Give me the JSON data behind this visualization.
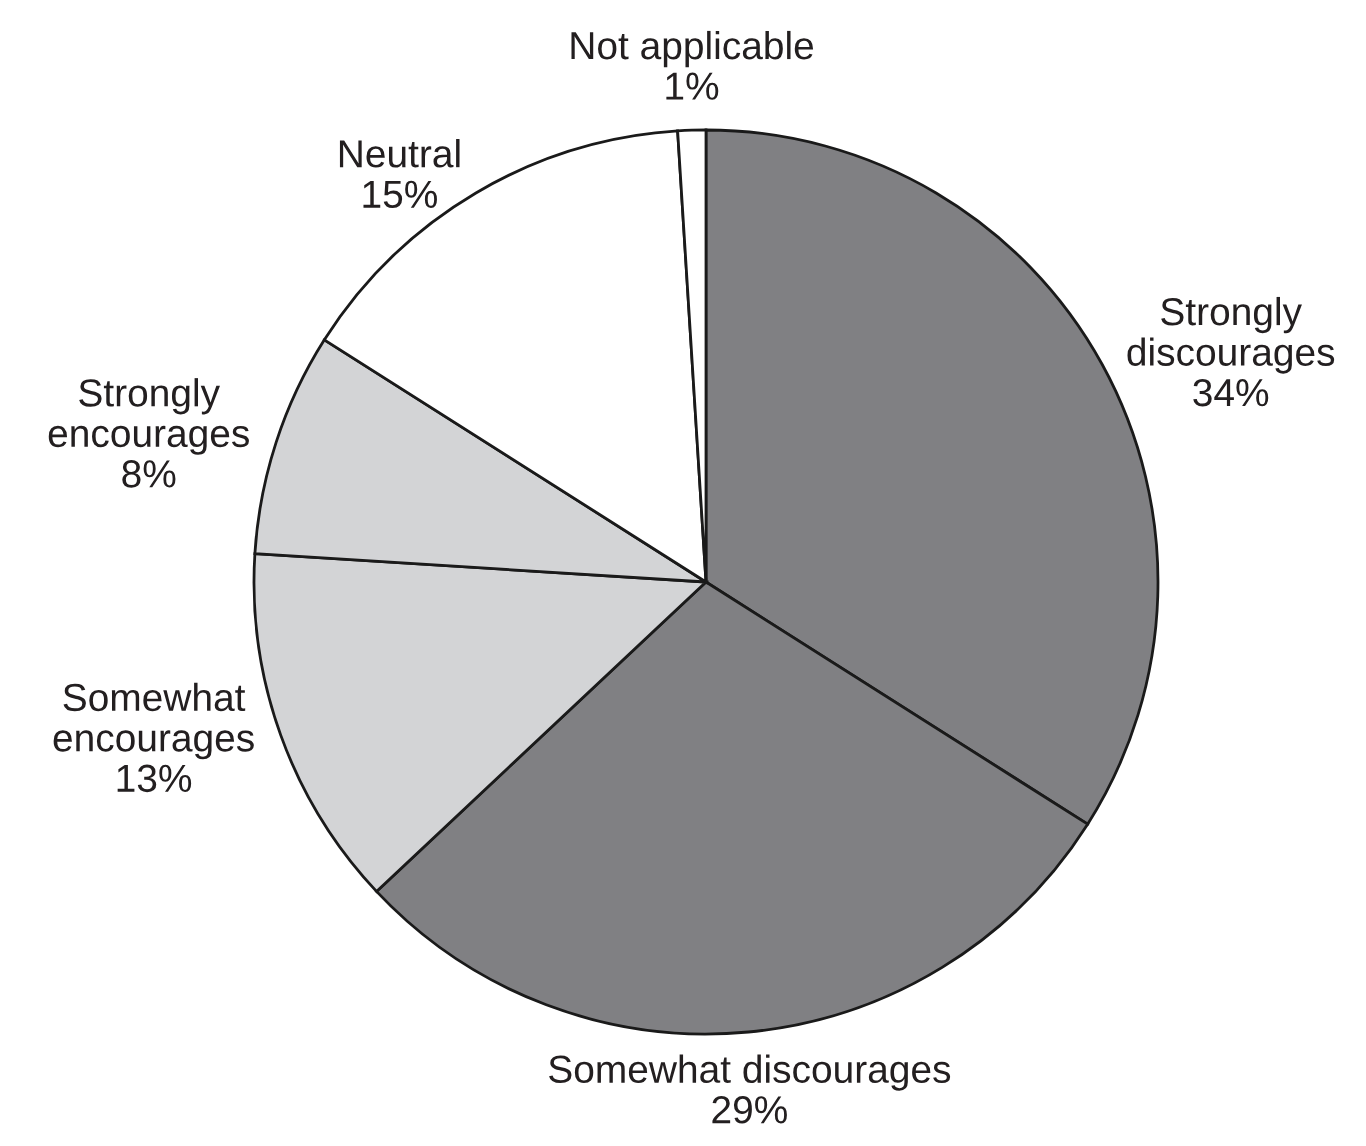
{
  "chart_data": {
    "type": "pie",
    "categories": [
      "Strongly\ndiscourages",
      "Somewhat discourages",
      "Somewhat\nencourages",
      "Strongly\nencourages",
      "Neutral",
      "Not applicable"
    ],
    "values": [
      34,
      29,
      13,
      8,
      15,
      1
    ],
    "colors": [
      "#808083",
      "#808083",
      "#d3d4d6",
      "#d3d4d6",
      "#ffffff",
      "#ffffff"
    ],
    "value_labels": [
      "34%",
      "29%",
      "13%",
      "8%",
      "15%",
      "1%"
    ],
    "legend": false
  }
}
